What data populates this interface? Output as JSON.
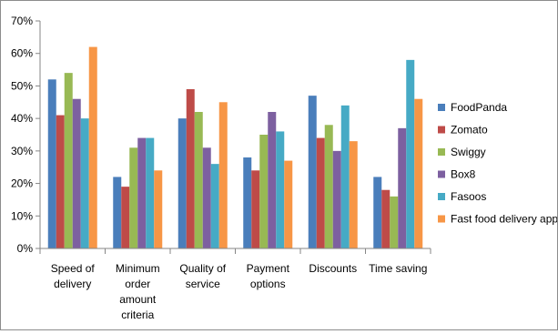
{
  "chart_data": {
    "type": "bar",
    "categories": [
      [
        "Speed of",
        "delivery"
      ],
      [
        "Minimum",
        "order",
        "amount",
        "criteria"
      ],
      [
        "Quality of",
        "service"
      ],
      [
        "Payment",
        "options"
      ],
      [
        "Discounts"
      ],
      [
        "Time saving"
      ]
    ],
    "series": [
      {
        "name": "FoodPanda",
        "color": "#4A7EBB",
        "values": [
          52,
          22,
          40,
          28,
          47,
          22
        ]
      },
      {
        "name": "Zomato",
        "color": "#BE4B48",
        "values": [
          41,
          19,
          49,
          24,
          34,
          18
        ]
      },
      {
        "name": "Swiggy",
        "color": "#98B954",
        "values": [
          54,
          31,
          42,
          35,
          38,
          16
        ]
      },
      {
        "name": "Box8",
        "color": "#7D60A0",
        "values": [
          46,
          34,
          31,
          42,
          30,
          37
        ]
      },
      {
        "name": "Fasoos",
        "color": "#46AAC5",
        "values": [
          40,
          34,
          26,
          36,
          44,
          58
        ]
      },
      {
        "name": "Fast food delivery apps",
        "color": "#F79646",
        "values": [
          62,
          24,
          45,
          27,
          33,
          46
        ]
      }
    ],
    "y_ticks": [
      "0%",
      "10%",
      "20%",
      "30%",
      "40%",
      "50%",
      "60%",
      "70%"
    ],
    "ylim": [
      0,
      70
    ],
    "grid": false,
    "legend_position": "right"
  }
}
